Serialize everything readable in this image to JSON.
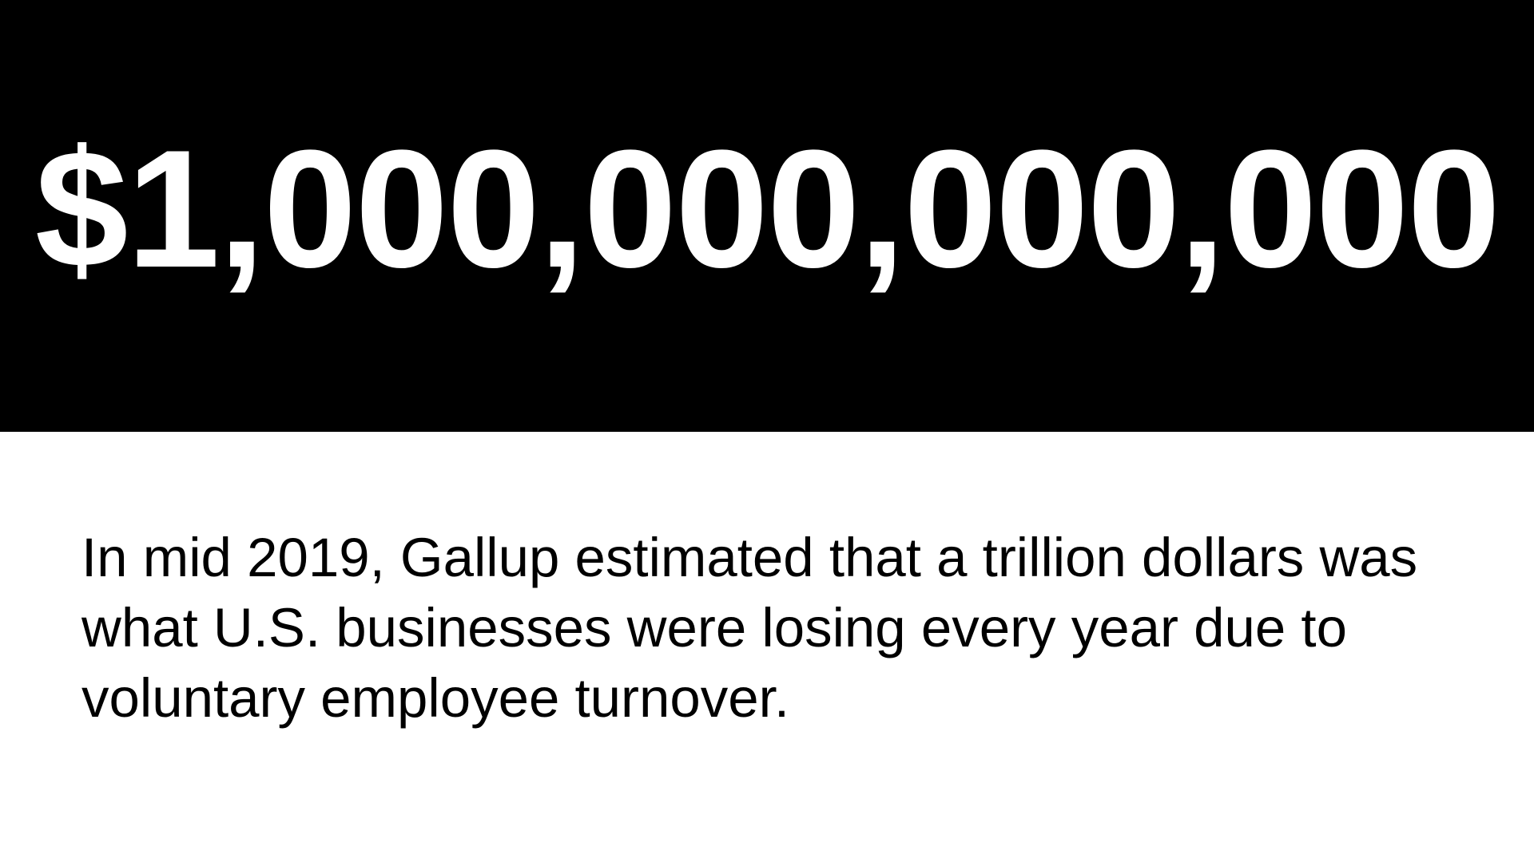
{
  "banner": {
    "headline": "$1,000,000,000,000",
    "background_color": "#000000",
    "text_color": "#ffffff"
  },
  "body": {
    "paragraph": "In mid 2019, Gallup estimated that a trillion dollars was what U.S. businesses were losing every year due to voluntary employee turnover."
  }
}
